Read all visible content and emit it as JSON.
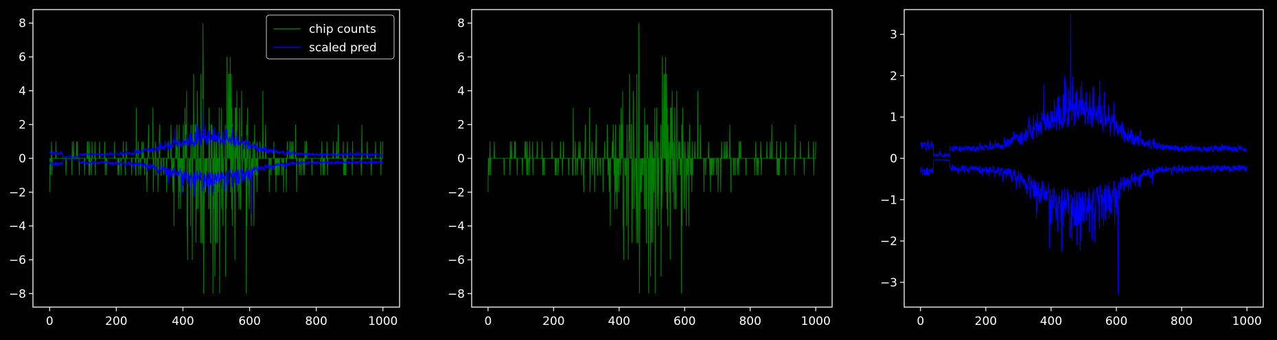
{
  "colors": {
    "background": "#000000",
    "axes": "#ffffff",
    "chip_counts": "#008000",
    "scaled_pred": "#0000ff"
  },
  "chart_data": [
    {
      "type": "line",
      "title": "",
      "xlabel": "",
      "ylabel": "",
      "xlim": [
        -50,
        1050
      ],
      "ylim": [
        -8.8,
        8.8
      ],
      "xticks": [
        0,
        200,
        400,
        600,
        800,
        1000
      ],
      "yticks": [
        -8,
        -6,
        -4,
        -2,
        0,
        2,
        4,
        6,
        8
      ],
      "grid": false,
      "legend": {
        "placement": "top-right",
        "entries": [
          "chip counts",
          "scaled pred"
        ]
      },
      "series": [
        {
          "name": "chip counts",
          "color": "#008000",
          "kind": "integer counts, signed",
          "x_range": [
            0,
            1000
          ],
          "min": -8,
          "max": 8,
          "peak_x": 460
        },
        {
          "name": "scaled pred",
          "color": "#0000ff",
          "kind": "mirrored envelope",
          "x_range": [
            0,
            1000
          ],
          "min": -3.3,
          "max": 3.5,
          "peak_x": 460
        }
      ]
    },
    {
      "type": "line",
      "title": "",
      "xlabel": "",
      "ylabel": "",
      "xlim": [
        -50,
        1050
      ],
      "ylim": [
        -8.8,
        8.8
      ],
      "xticks": [
        0,
        200,
        400,
        600,
        800,
        1000
      ],
      "yticks": [
        -8,
        -6,
        -4,
        -2,
        0,
        2,
        4,
        6,
        8
      ],
      "grid": false,
      "series": [
        {
          "color": "#008000",
          "kind": "integer counts, signed",
          "x_range": [
            0,
            1000
          ],
          "min": -8,
          "max": 8,
          "peak_x": 460
        }
      ]
    },
    {
      "type": "line",
      "title": "",
      "xlabel": "",
      "ylabel": "",
      "xlim": [
        -50,
        1050
      ],
      "ylim": [
        -3.6,
        3.6
      ],
      "xticks": [
        0,
        200,
        400,
        600,
        800,
        1000
      ],
      "yticks": [
        -3,
        -2,
        -1,
        0,
        1,
        2,
        3
      ],
      "grid": false,
      "series": [
        {
          "color": "#0000ff",
          "kind": "mirrored envelope",
          "x_range": [
            0,
            1000
          ],
          "min": -3.3,
          "max": 3.5,
          "peak_x": 460
        }
      ]
    }
  ]
}
